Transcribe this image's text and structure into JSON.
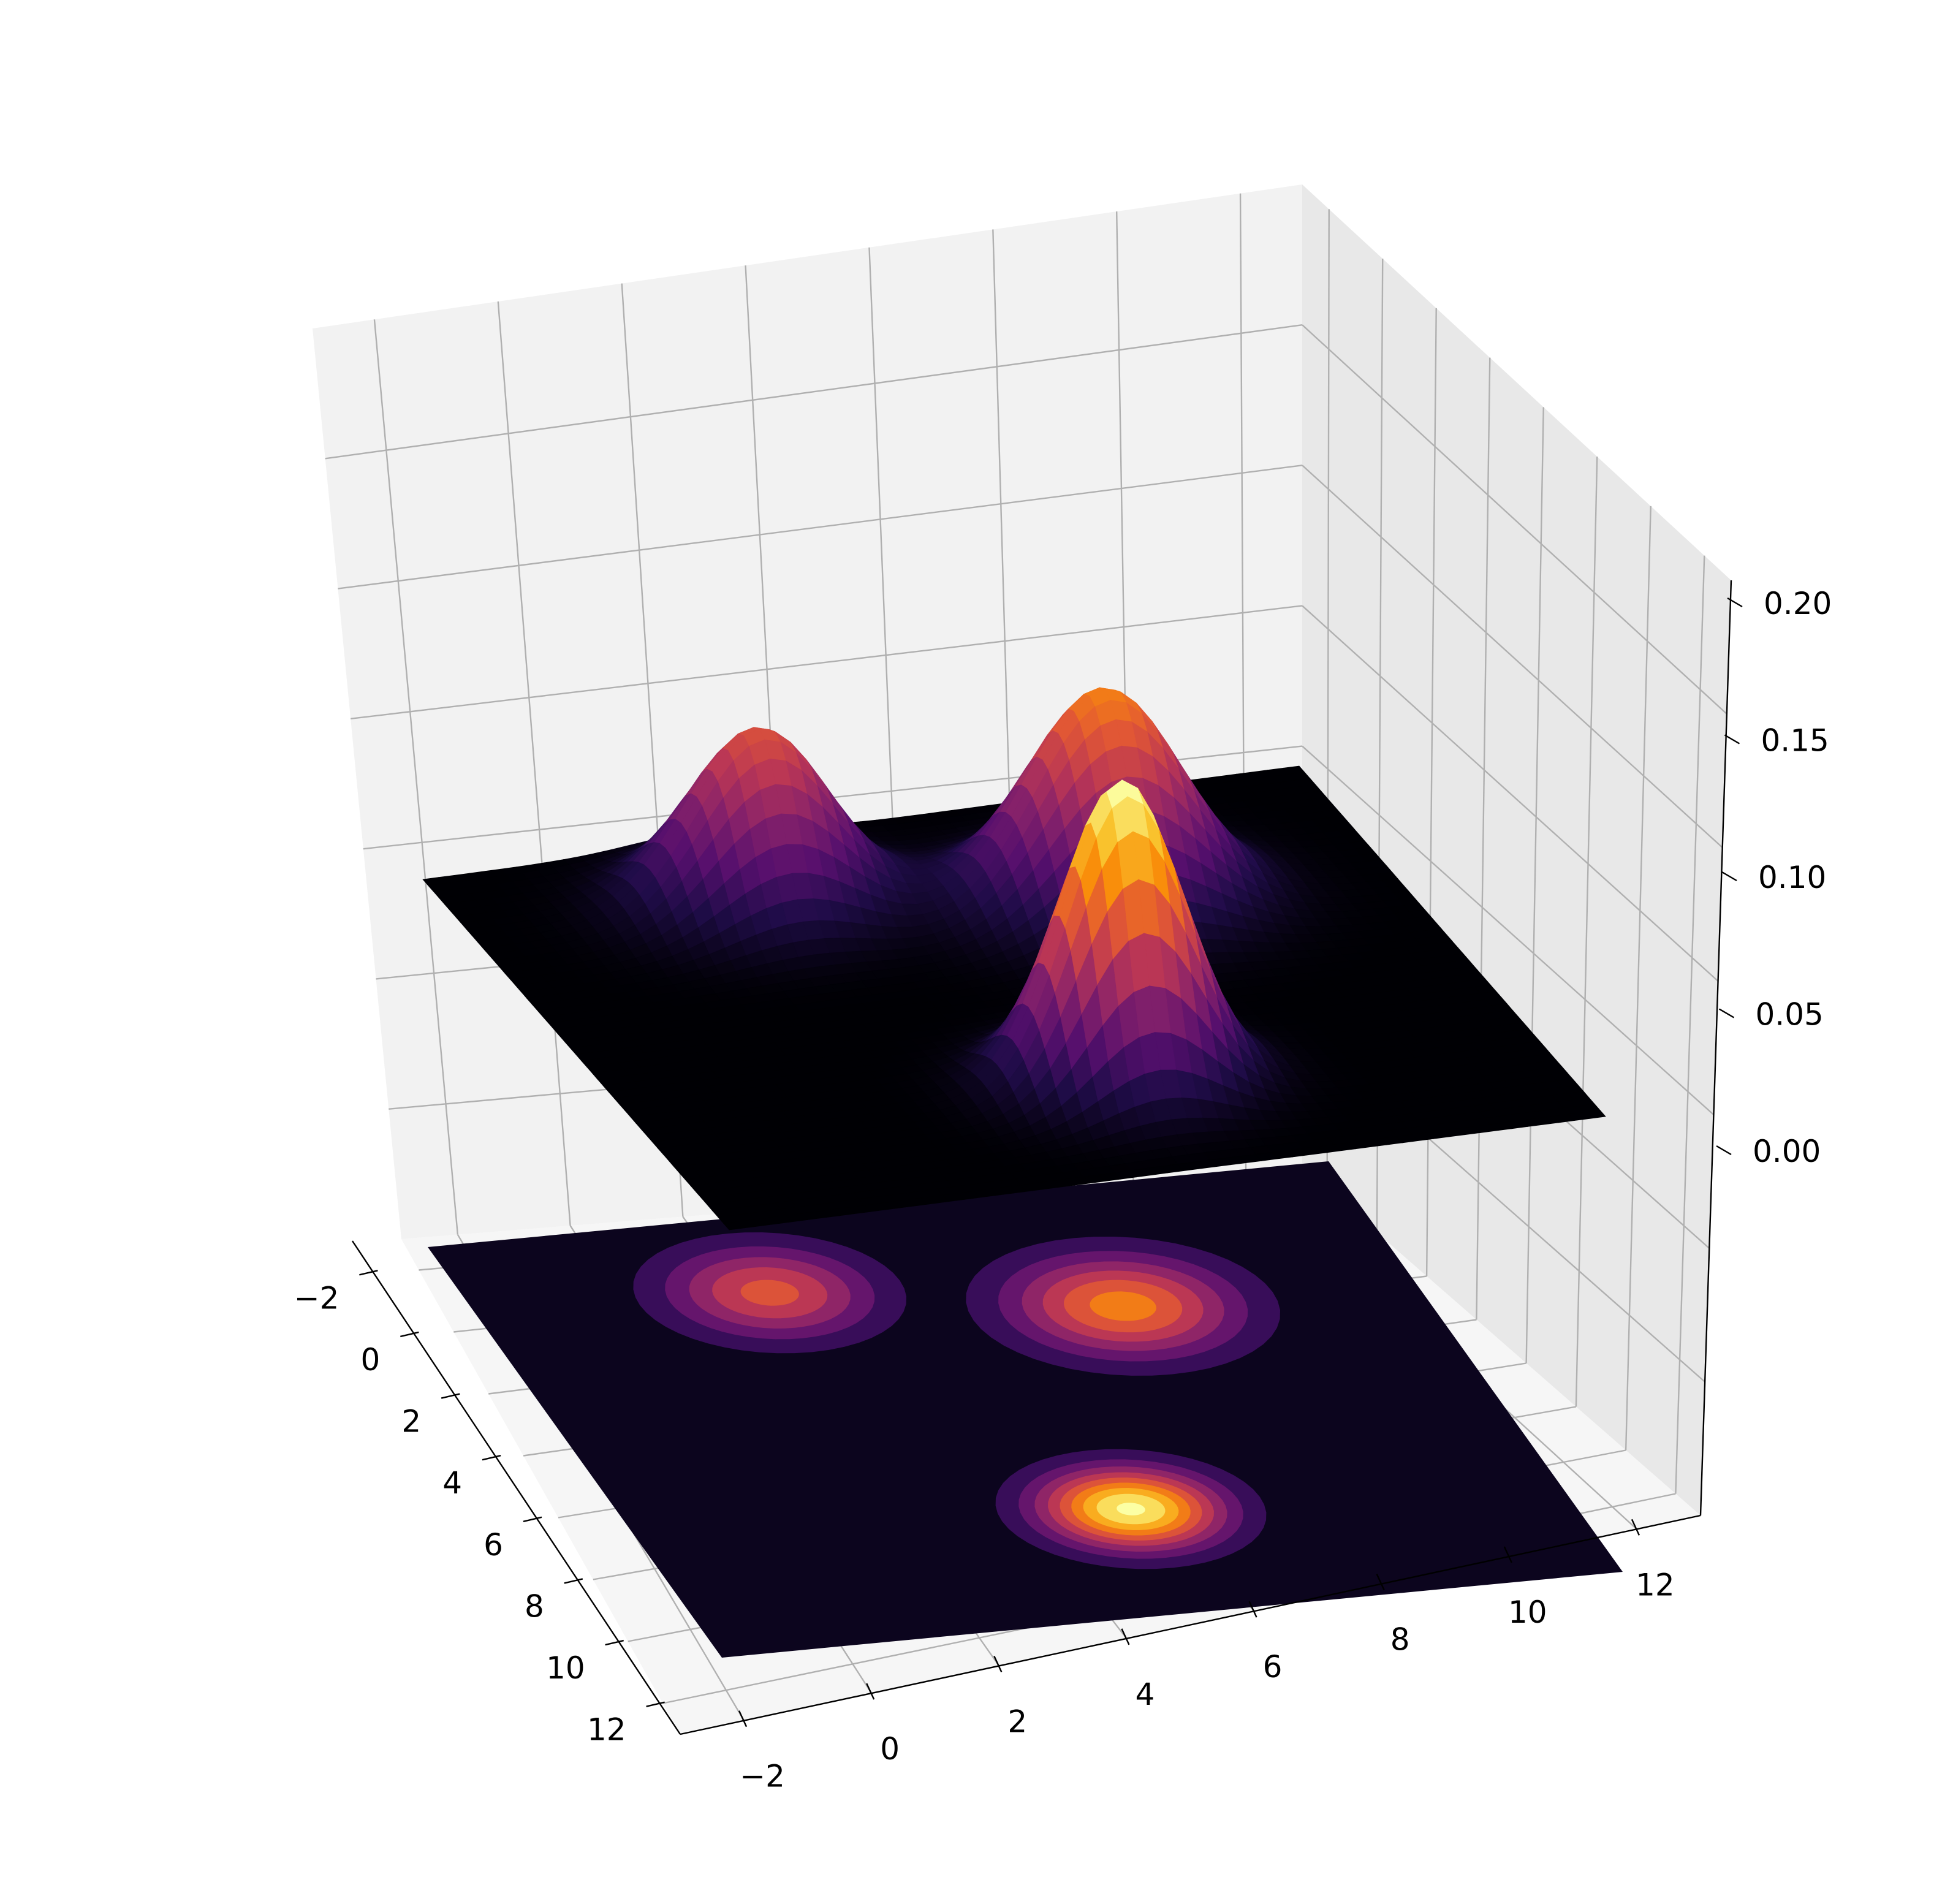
{
  "chart_data": {
    "type": "surface3d",
    "title": "",
    "xlabel": "",
    "ylabel": "",
    "zlabel": "",
    "colormap": "inferno",
    "grid": true,
    "x_ticks": [
      "−2",
      "0",
      "2",
      "4",
      "6",
      "8",
      "10",
      "12"
    ],
    "y_ticks": [
      "−2",
      "0",
      "2",
      "4",
      "6",
      "8",
      "10",
      "12"
    ],
    "z_ticks": [
      "0.00",
      "0.05",
      "0.10",
      "0.15",
      "0.20"
    ],
    "xlim": [
      -2,
      12
    ],
    "ylim": [
      -2,
      12
    ],
    "zlim": [
      0,
      0.2
    ],
    "peaks": [
      {
        "x": 0.5,
        "y": 2.5,
        "amplitude": 0.12,
        "sigma": 1.1
      },
      {
        "x": 2.0,
        "y": 7.5,
        "amplitude": 0.145,
        "sigma": 1.2
      },
      {
        "x": 8.5,
        "y": 5.5,
        "amplitude": 0.205,
        "sigma": 0.95
      }
    ],
    "contour_projection": {
      "levels": 9,
      "location": "floor"
    }
  }
}
